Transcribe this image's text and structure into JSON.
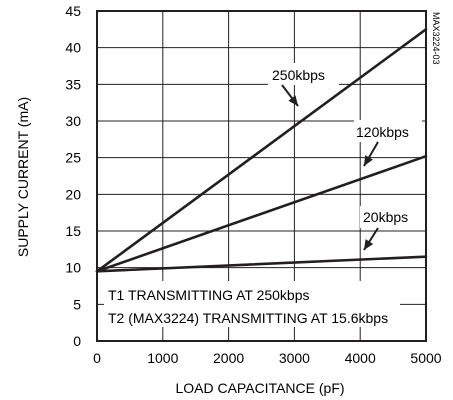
{
  "chart_data": {
    "type": "line",
    "title": "",
    "xlabel": "LOAD CAPACITANCE (pF)",
    "ylabel": "SUPPLY CURRENT (mA)",
    "xlim": [
      0,
      5000
    ],
    "ylim": [
      0,
      45
    ],
    "x_ticks": [
      0,
      1000,
      2000,
      3000,
      4000,
      5000
    ],
    "y_ticks": [
      0,
      5,
      10,
      15,
      20,
      25,
      30,
      35,
      40,
      45
    ],
    "grid": true,
    "series": [
      {
        "name": "250kbps",
        "x": [
          0,
          5000
        ],
        "values": [
          9.5,
          42.5
        ]
      },
      {
        "name": "120kbps",
        "x": [
          0,
          5000
        ],
        "values": [
          9.5,
          25.2
        ]
      },
      {
        "name": "20kbps",
        "x": [
          0,
          5000
        ],
        "values": [
          9.5,
          11.5
        ]
      }
    ],
    "annotations": [
      "T1 TRANSMITTING AT 250kbps",
      "T2 (MAX3224) TRANSMITTING AT 15.6kbps"
    ],
    "figure_code": "MAX3224-03"
  },
  "colors": {
    "line": "#231f20",
    "grid": "#231f20",
    "background": "#ffffff"
  }
}
